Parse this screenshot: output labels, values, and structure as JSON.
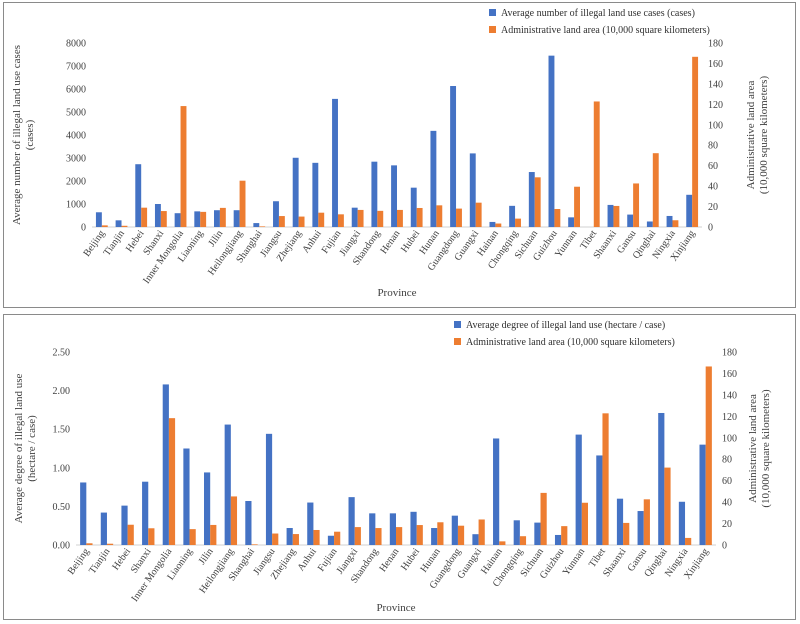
{
  "chart_data": [
    {
      "type": "bar",
      "categories": [
        "Beijing",
        "Tianjin",
        "Hebei",
        "Shanxi",
        "Inner Mongolia",
        "Liaoning",
        "Jilin",
        "Heilongjiang",
        "Shanghai",
        "Jiangsu",
        "Zhejiang",
        "Anhui",
        "Fujian",
        "Jiangxi",
        "Shandong",
        "Henan",
        "Hubei",
        "Hunan",
        "Guangdong",
        "Guangxi",
        "Hainan",
        "Chongqing",
        "Sichuan",
        "Guizhou",
        "Yunnan",
        "Tibet",
        "Shaanxi",
        "Gansu",
        "Qinghai",
        "Ningxia",
        "Xinjiang"
      ],
      "series": [
        {
          "name": "Average number of illegal land use cases (cases)",
          "color": "#4472C4",
          "axis": "left",
          "values": [
            640,
            290,
            2730,
            1000,
            600,
            680,
            730,
            730,
            170,
            1120,
            3010,
            2790,
            5570,
            840,
            2840,
            2680,
            1710,
            4180,
            6130,
            3200,
            220,
            920,
            2390,
            7450,
            420,
            null,
            960,
            540,
            240,
            480,
            1400
          ]
        },
        {
          "name": "Administrative land area (10,000 square kilometers)",
          "color": "#ED7D31",
          "axis": "right",
          "values": [
            1.6,
            1.2,
            18.9,
            15.6,
            118.3,
            14.8,
            18.7,
            45.3,
            0.6,
            10.7,
            10.2,
            14.0,
            12.4,
            16.7,
            15.8,
            16.7,
            18.6,
            21.2,
            18.0,
            23.8,
            3.4,
            8.2,
            48.6,
            17.6,
            39.4,
            122.8,
            20.6,
            42.6,
            72.2,
            6.6,
            166.5
          ]
        }
      ],
      "ylabel": "Average number of illegal land use cases (cases)",
      "y2label": "Administrative land area (10,000 square kilometers)",
      "xlabel": "Province",
      "ylim": [
        0,
        8000
      ],
      "yticks": [
        "0",
        "1000",
        "2000",
        "3000",
        "4000",
        "5000",
        "6000",
        "7000",
        "8000"
      ],
      "y2lim": [
        0,
        180
      ],
      "y2ticks": [
        "0",
        "20",
        "40",
        "60",
        "80",
        "100",
        "120",
        "140",
        "160",
        "180"
      ],
      "legend_position": "top-right"
    },
    {
      "type": "bar",
      "categories": [
        "Beijing",
        "Tianjin",
        "Hebei",
        "Shanxi",
        "Inner Mongolia",
        "Liaoning",
        "Jilin",
        "Heilongjiang",
        "Shanghai",
        "Jiangsu",
        "Zhejiang",
        "Anhui",
        "Fujian",
        "Jiangxi",
        "Shandong",
        "Henan",
        "Hubei",
        "Hunan",
        "Guangdong",
        "Guangxi",
        "Hainan",
        "Chongqing",
        "Sichuan",
        "Guizhou",
        "Yunnan",
        "Tibet",
        "Shaanxi",
        "Gansu",
        "Qinghai",
        "Ningxia",
        "Xinjiang"
      ],
      "series": [
        {
          "name": "Average degree of illegal land use (hectare / case)",
          "color": "#4472C4",
          "axis": "left",
          "values": [
            0.81,
            0.42,
            0.51,
            0.82,
            2.08,
            1.25,
            0.94,
            1.56,
            0.57,
            1.44,
            0.22,
            0.55,
            0.12,
            0.62,
            0.41,
            0.41,
            0.43,
            0.22,
            0.38,
            0.14,
            1.38,
            0.32,
            0.29,
            0.13,
            1.43,
            1.16,
            0.6,
            0.44,
            1.71,
            0.56,
            1.3
          ]
        },
        {
          "name": "Administrative land area (10,000 square kilometers)",
          "color": "#ED7D31",
          "axis": "right",
          "values": [
            1.6,
            1.2,
            18.9,
            15.6,
            118.3,
            14.8,
            18.7,
            45.3,
            0.6,
            10.7,
            10.2,
            14.0,
            12.4,
            16.7,
            15.8,
            16.7,
            18.6,
            21.2,
            18.0,
            23.8,
            3.4,
            8.2,
            48.6,
            17.6,
            39.4,
            122.8,
            20.6,
            42.6,
            72.2,
            6.6,
            166.5
          ]
        }
      ],
      "ylabel": "Average degree of illegal land use (hectare / case)",
      "y2label": "Administrative land area (10,000 square kilometers)",
      "xlabel": "Province",
      "ylim": [
        0,
        2.5
      ],
      "yticks": [
        "0.00",
        "0.50",
        "1.00",
        "1.50",
        "2.00",
        "2.50"
      ],
      "y2lim": [
        0,
        180
      ],
      "y2ticks": [
        "0",
        "20",
        "40",
        "60",
        "80",
        "100",
        "120",
        "140",
        "160",
        "180"
      ],
      "legend_position": "top-right"
    }
  ]
}
